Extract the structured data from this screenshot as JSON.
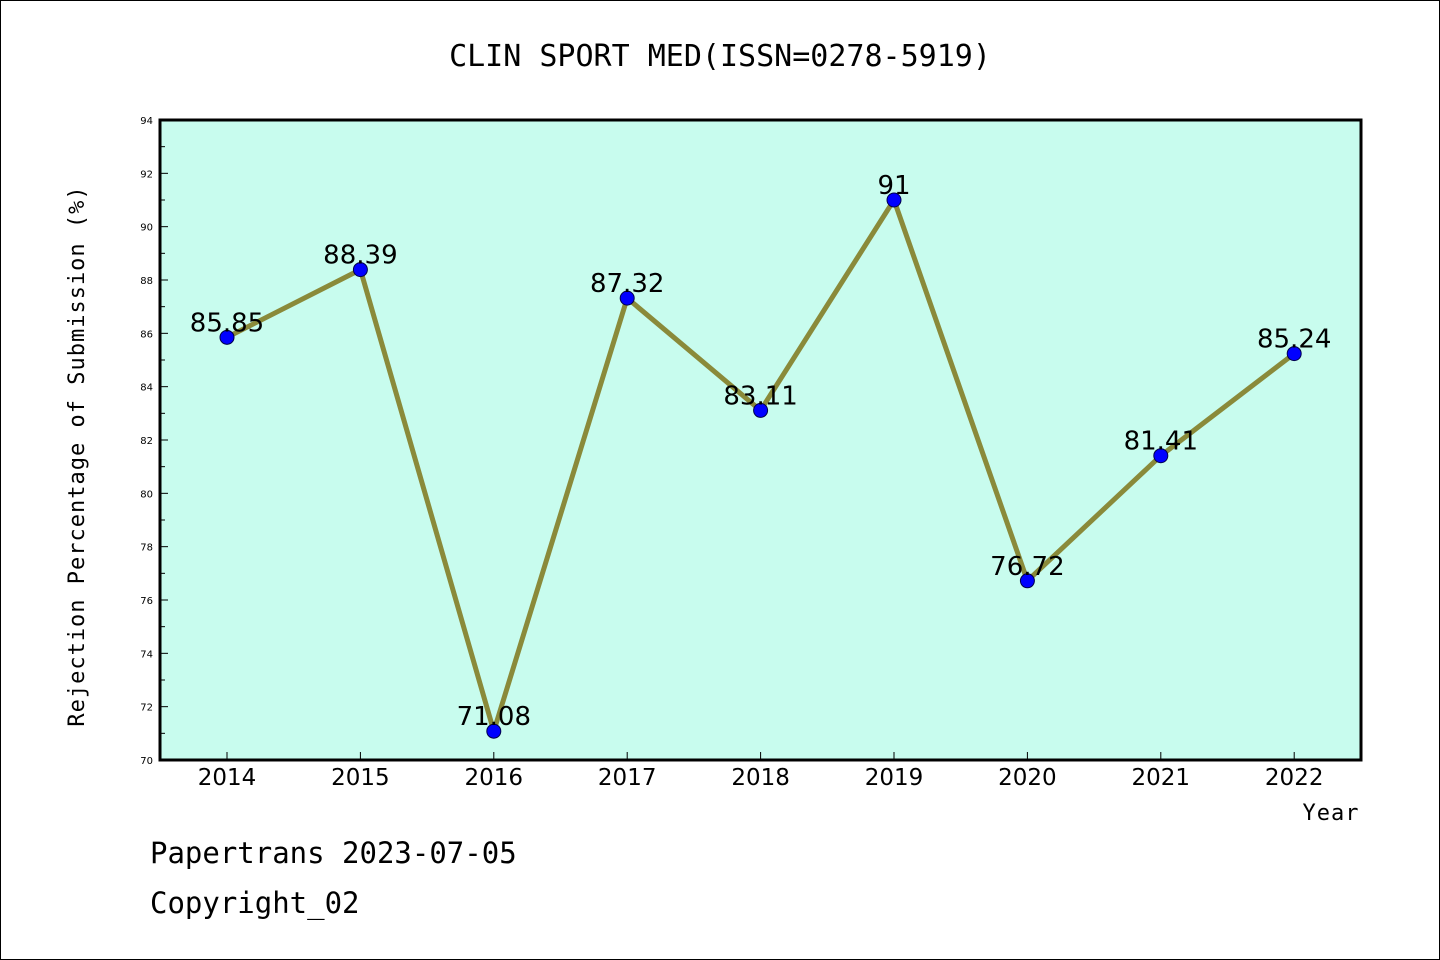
{
  "chart_data": {
    "type": "line",
    "title": "CLIN SPORT MED(ISSN=0278-5919)",
    "xlabel": "Year",
    "ylabel": "Rejection Percentage of Submission (%)",
    "categories": [
      "2014",
      "2015",
      "2016",
      "2017",
      "2018",
      "2019",
      "2020",
      "2021",
      "2022"
    ],
    "series": [
      {
        "values": [
          85.85,
          88.39,
          71.08,
          87.32,
          83.11,
          91,
          76.72,
          81.41,
          85.24
        ]
      }
    ],
    "data_labels": [
      "85.85",
      "88.39",
      "71.08",
      "87.32",
      "83.11",
      "91",
      "76.72",
      "81.41",
      "85.24"
    ],
    "ylim": [
      70,
      94
    ],
    "yticks": [
      "70",
      "72",
      "74",
      "76",
      "78",
      "80",
      "82",
      "84",
      "86",
      "88",
      "90",
      "92",
      "94"
    ],
    "grid": false,
    "colors": {
      "plot_background": "#c8fcee",
      "line": "#8a8a3a",
      "marker": "#0000ff"
    }
  },
  "footer": {
    "line1": "Papertrans 2023-07-05",
    "line2": "Copyright_02"
  }
}
